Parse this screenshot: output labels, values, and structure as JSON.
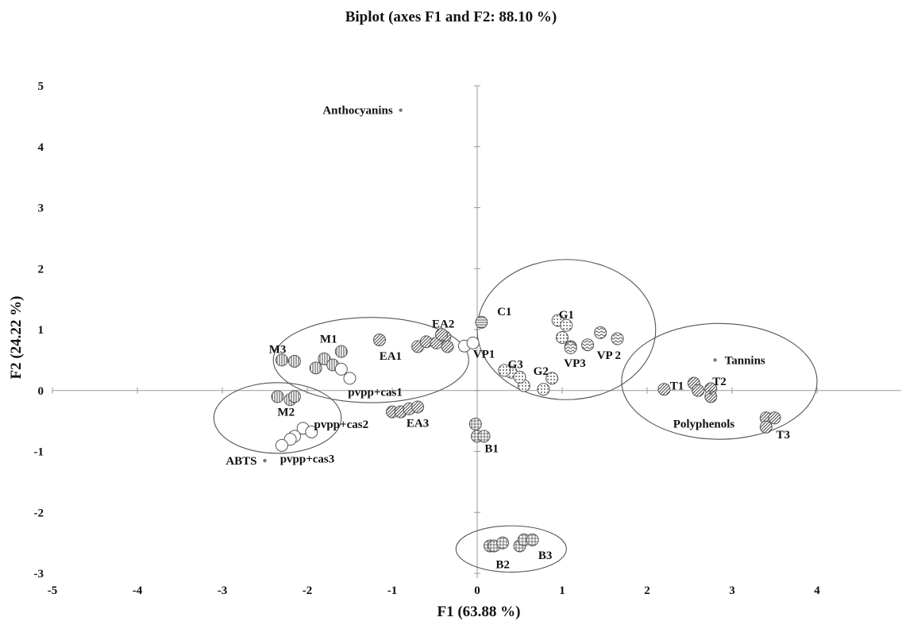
{
  "chart_data": {
    "type": "scatter",
    "title": "Biplot (axes F1 and F2: 88.10 %)",
    "xlabel": "F1 (63.88 %)",
    "ylabel": "F2 (24.22 %)",
    "xlim": [
      -5,
      5
    ],
    "ylim": [
      -3,
      5
    ],
    "xticks": [
      "-5",
      "-4",
      "-3",
      "-2",
      "-1",
      "0",
      "1",
      "2",
      "3",
      "4"
    ],
    "yticks": [
      "-3",
      "-2",
      "-1",
      "0",
      "1",
      "2",
      "3",
      "4",
      "5"
    ],
    "grid": false,
    "variables": [
      {
        "name": "Anthocyanins",
        "x": -0.9,
        "y": 4.6
      },
      {
        "name": "Tannins",
        "x": 2.8,
        "y": 0.5
      },
      {
        "name": "Polyphenols",
        "x": 2.75,
        "y": -0.05
      },
      {
        "name": "ABTS",
        "x": -2.5,
        "y": -1.15
      }
    ],
    "groups": [
      {
        "pattern": "vline",
        "points": [
          [
            -2.3,
            0.5
          ],
          [
            -2.15,
            0.48
          ],
          [
            -1.8,
            0.52
          ],
          [
            -1.6,
            0.64
          ],
          [
            -1.7,
            0.42
          ],
          [
            -1.9,
            0.37
          ]
        ]
      },
      {
        "pattern": "open",
        "points": [
          [
            -1.6,
            0.35
          ],
          [
            -1.5,
            0.2
          ]
        ]
      },
      {
        "pattern": "diag",
        "points": [
          [
            -1.15,
            0.83
          ],
          [
            -0.7,
            0.72
          ],
          [
            -0.6,
            0.8
          ],
          [
            -0.48,
            0.78
          ],
          [
            -0.38,
            0.88
          ],
          [
            -0.42,
            0.92
          ],
          [
            -0.35,
            0.72
          ]
        ]
      },
      {
        "pattern": "open",
        "points": [
          [
            -0.15,
            0.73
          ],
          [
            -0.05,
            0.78
          ]
        ]
      },
      {
        "pattern": "hline",
        "points": [
          [
            0.05,
            1.12
          ]
        ]
      },
      {
        "pattern": "dots",
        "points": [
          [
            0.95,
            1.15
          ],
          [
            1.05,
            1.07
          ],
          [
            1.0,
            0.87
          ],
          [
            1.1,
            0.72
          ],
          [
            0.88,
            0.2
          ],
          [
            0.55,
            0.08
          ],
          [
            0.78,
            0.02
          ],
          [
            0.4,
            0.3
          ],
          [
            0.5,
            0.22
          ],
          [
            0.32,
            0.33
          ]
        ]
      },
      {
        "pattern": "wave",
        "points": [
          [
            1.1,
            0.7
          ],
          [
            1.3,
            0.75
          ],
          [
            1.45,
            0.95
          ],
          [
            1.65,
            0.85
          ]
        ]
      },
      {
        "pattern": "diag",
        "points": [
          [
            2.2,
            0.02
          ],
          [
            2.55,
            0.12
          ],
          [
            2.6,
            0.0
          ],
          [
            2.75,
            0.03
          ],
          [
            2.75,
            -0.1
          ]
        ]
      },
      {
        "pattern": "diag",
        "points": [
          [
            3.4,
            -0.45
          ],
          [
            3.5,
            -0.45
          ],
          [
            3.4,
            -0.6
          ]
        ]
      },
      {
        "pattern": "vline",
        "points": [
          [
            -2.35,
            -0.1
          ],
          [
            -2.2,
            -0.15
          ],
          [
            -2.15,
            -0.1
          ]
        ]
      },
      {
        "pattern": "open",
        "points": [
          [
            -2.05,
            -0.62
          ],
          [
            -1.95,
            -0.68
          ],
          [
            -2.15,
            -0.75
          ],
          [
            -2.2,
            -0.8
          ],
          [
            -2.3,
            -0.9
          ]
        ]
      },
      {
        "pattern": "diag",
        "points": [
          [
            -1.0,
            -0.35
          ],
          [
            -0.9,
            -0.35
          ],
          [
            -0.8,
            -0.3
          ],
          [
            -0.7,
            -0.27
          ]
        ]
      },
      {
        "pattern": "cross",
        "points": [
          [
            -0.02,
            -0.55
          ],
          [
            0.0,
            -0.75
          ],
          [
            0.08,
            -0.75
          ]
        ]
      },
      {
        "pattern": "cross",
        "points": [
          [
            0.15,
            -2.55
          ],
          [
            0.2,
            -2.55
          ],
          [
            0.3,
            -2.5
          ],
          [
            0.5,
            -2.55
          ],
          [
            0.55,
            -2.45
          ],
          [
            0.65,
            -2.45
          ]
        ]
      }
    ],
    "sample_labels": [
      {
        "text": "M3",
        "x": -2.35,
        "y": 0.68
      },
      {
        "text": "M1",
        "x": -1.75,
        "y": 0.85
      },
      {
        "text": "EA1",
        "x": -1.02,
        "y": 0.57
      },
      {
        "text": "EA2",
        "x": -0.4,
        "y": 1.1
      },
      {
        "text": "VP1",
        "x": 0.08,
        "y": 0.6
      },
      {
        "text": "C1",
        "x": 0.32,
        "y": 1.3
      },
      {
        "text": "G1",
        "x": 1.05,
        "y": 1.25
      },
      {
        "text": "G3",
        "x": 0.45,
        "y": 0.43
      },
      {
        "text": "G2",
        "x": 0.75,
        "y": 0.32
      },
      {
        "text": "VP3",
        "x": 1.15,
        "y": 0.45
      },
      {
        "text": "VP 2",
        "x": 1.55,
        "y": 0.58
      },
      {
        "text": "T1",
        "x": 2.35,
        "y": 0.08
      },
      {
        "text": "T2",
        "x": 2.85,
        "y": 0.15
      },
      {
        "text": "T3",
        "x": 3.6,
        "y": -0.72
      },
      {
        "text": "pvpp+cas1",
        "x": -1.2,
        "y": -0.02
      },
      {
        "text": "M2",
        "x": -2.25,
        "y": -0.35
      },
      {
        "text": "pvpp+cas2",
        "x": -1.6,
        "y": -0.55
      },
      {
        "text": "EA3",
        "x": -0.7,
        "y": -0.53
      },
      {
        "text": "B1",
        "x": 0.17,
        "y": -0.95
      },
      {
        "text": "pvpp+cas3",
        "x": -2.0,
        "y": -1.12
      },
      {
        "text": "B2",
        "x": 0.3,
        "y": -2.85
      },
      {
        "text": "B3",
        "x": 0.8,
        "y": -2.7
      }
    ],
    "ellipses": [
      {
        "cx": -1.25,
        "cy": 0.5,
        "rx": 1.15,
        "ry": 0.7
      },
      {
        "cx": 1.05,
        "cy": 1.0,
        "rx": 1.05,
        "ry": 1.15
      },
      {
        "cx": 2.85,
        "cy": 0.15,
        "rx": 1.15,
        "ry": 0.95
      },
      {
        "cx": -2.35,
        "cy": -0.45,
        "rx": 0.75,
        "ry": 0.58
      },
      {
        "cx": 0.4,
        "cy": -2.6,
        "rx": 0.65,
        "ry": 0.38
      }
    ]
  }
}
